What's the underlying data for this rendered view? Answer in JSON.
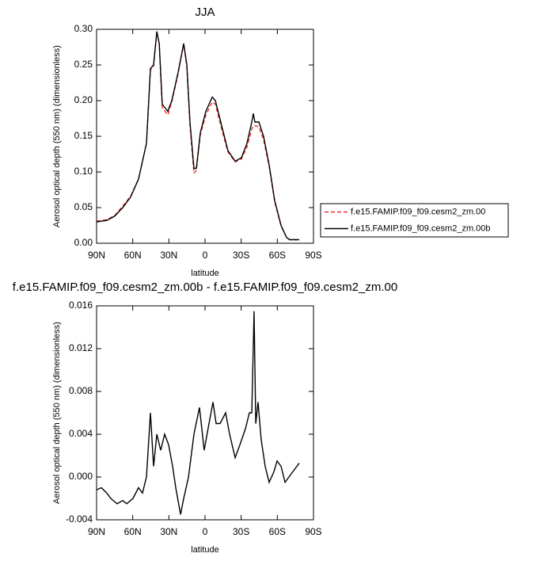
{
  "chart_data": [
    {
      "type": "line",
      "title": "JJA",
      "xlabel": "latitude",
      "ylabel": "Aerosol optical depth (550 nm) (dimensionless)",
      "x": [
        90,
        81.5,
        75,
        68.3,
        61.7,
        55.2,
        48.6,
        45.3,
        42.7,
        40,
        38,
        35.5,
        30.9,
        27.6,
        22.3,
        17.7,
        15.1,
        12.5,
        9.2,
        7.2,
        3.9,
        -0.7,
        -6,
        -8.6,
        -13.8,
        -19,
        -25,
        -30.2,
        -34.8,
        -38.8,
        -40.1,
        -41.4,
        -44.7,
        -48.6,
        -53.2,
        -57.8,
        -63.1,
        -67.7,
        -70.3,
        -78.2
      ],
      "series": [
        {
          "name": "f.e15.FAMIP.f09_f09.cesm2_zm.00",
          "color": "#e8322b",
          "line_style": "dashed",
          "values": [
            0.031,
            0.033,
            0.039,
            0.052,
            0.066,
            0.09,
            0.14,
            0.243,
            0.248,
            0.296,
            0.28,
            0.19,
            0.18,
            0.198,
            0.238,
            0.28,
            0.248,
            0.165,
            0.098,
            0.102,
            0.152,
            0.18,
            0.198,
            0.195,
            0.16,
            0.128,
            0.114,
            0.118,
            0.135,
            0.16,
            0.165,
            0.165,
            0.163,
            0.145,
            0.108,
            0.058,
            0.024,
            0.008,
            0.005,
            0.005
          ]
        },
        {
          "name": "f.e15.FAMIP.f09_f09.cesm2_zm.00b",
          "color": "#000000",
          "line_style": "solid",
          "values": [
            0.03,
            0.032,
            0.038,
            0.05,
            0.065,
            0.09,
            0.14,
            0.245,
            0.25,
            0.297,
            0.28,
            0.195,
            0.185,
            0.2,
            0.24,
            0.28,
            0.25,
            0.17,
            0.105,
            0.105,
            0.155,
            0.185,
            0.205,
            0.2,
            0.165,
            0.13,
            0.115,
            0.12,
            0.14,
            0.17,
            0.182,
            0.17,
            0.17,
            0.15,
            0.11,
            0.06,
            0.025,
            0.008,
            0.005,
            0.005
          ]
        }
      ],
      "xlim": [
        90,
        -90
      ],
      "xticks": [
        {
          "value": 90,
          "label": "90N"
        },
        {
          "value": 60,
          "label": "60N"
        },
        {
          "value": 30,
          "label": "30N"
        },
        0,
        {
          "value": -30,
          "label": "30S"
        },
        {
          "value": -60,
          "label": "60S"
        },
        {
          "value": -90,
          "label": "90S"
        }
      ],
      "ylim": [
        0,
        0.3
      ],
      "yticks": [
        {
          "value": 0,
          "label": "0.00"
        },
        0.05,
        {
          "value": 0.1,
          "label": "0.10"
        },
        0.15,
        {
          "value": 0.2,
          "label": "0.20"
        },
        0.25,
        {
          "value": 0.3,
          "label": "0.30"
        }
      ],
      "legend": "outside-right"
    },
    {
      "type": "line",
      "title": "f.e15.FAMIP.f09_f09.cesm2_zm.00b - f.e15.FAMIP.f09_f09.cesm2_zm.00",
      "xlabel": "latitude",
      "ylabel": "Aerosol optical depth (550 nm) (dimensionless)",
      "x": [
        90,
        86.1,
        81.5,
        78.2,
        72.9,
        68.3,
        65,
        59.8,
        55.2,
        51.9,
        48.6,
        45.3,
        42.7,
        40,
        36.8,
        33.5,
        30.2,
        26.9,
        24.3,
        20.3,
        17.7,
        13.7,
        9.2,
        4.6,
        0.7,
        -3.3,
        -6.6,
        -9.2,
        -12.5,
        -17.1,
        -20.4,
        -25,
        -28.9,
        -33.5,
        -36.8,
        -38.8,
        -40.7,
        -42.1,
        -44,
        -46.6,
        -49.9,
        -53.2,
        -57.2,
        -59.8,
        -63.1,
        -66.4,
        -69.6,
        -72.9,
        -78.2
      ],
      "color": "#000000",
      "values": [
        -0.0012,
        -0.001,
        -0.0015,
        -0.002,
        -0.0025,
        -0.0022,
        -0.0025,
        -0.002,
        -0.001,
        -0.0015,
        0.0,
        0.006,
        0.001,
        0.004,
        0.0025,
        0.004,
        0.003,
        0.001,
        -0.001,
        -0.0035,
        -0.002,
        0.0,
        0.004,
        0.0065,
        0.0025,
        0.005,
        0.007,
        0.005,
        0.005,
        0.006,
        0.004,
        0.0018,
        0.003,
        0.0045,
        0.006,
        0.006,
        0.0155,
        0.005,
        0.007,
        0.0035,
        0.001,
        -0.0005,
        0.0005,
        0.0015,
        0.001,
        -0.0005,
        0.0,
        0.0005,
        0.0013
      ],
      "xlim": [
        90,
        -90
      ],
      "xticks": [
        {
          "value": 90,
          "label": "90N"
        },
        {
          "value": 60,
          "label": "60N"
        },
        {
          "value": 30,
          "label": "30N"
        },
        0,
        {
          "value": -30,
          "label": "30S"
        },
        {
          "value": -60,
          "label": "60S"
        },
        {
          "value": -90,
          "label": "90S"
        }
      ],
      "ylim": [
        -0.004,
        0.016
      ],
      "yticks": [
        -0.004,
        {
          "value": 0,
          "label": "0.000"
        },
        0.004,
        0.008,
        0.012,
        0.016
      ]
    }
  ]
}
